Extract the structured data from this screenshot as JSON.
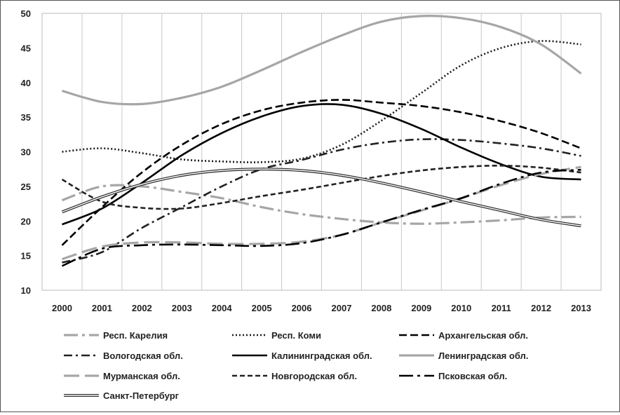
{
  "chart_data": {
    "type": "line",
    "title": "",
    "xlabel": "",
    "ylabel": "",
    "ylim": [
      10,
      50
    ],
    "yticks": [
      10,
      15,
      20,
      25,
      30,
      35,
      40,
      45,
      50
    ],
    "grid": "vertical",
    "legend_position": "bottom",
    "x": [
      "2000",
      "2001",
      "2002",
      "2003",
      "2004",
      "2005",
      "2006",
      "2007",
      "2008",
      "2009",
      "2010",
      "2011",
      "2012",
      "2013"
    ],
    "series": [
      {
        "name": "Респ. Карелия",
        "color": "#a6a6a6",
        "dash": "long-dash-dot",
        "values": [
          23,
          25,
          25,
          24.2,
          23.3,
          22,
          21,
          20.3,
          19.8,
          19.6,
          19.8,
          20.1,
          20.5,
          20.6
        ]
      },
      {
        "name": "Респ. Коми",
        "color": "#1a1a1a",
        "dash": "dotted",
        "values": [
          30,
          30.5,
          29.8,
          28.9,
          28.6,
          28.5,
          29,
          31,
          34.5,
          38.5,
          42.5,
          45,
          46,
          45.5
        ]
      },
      {
        "name": "Архангельская обл.",
        "color": "#000000",
        "dash": "dashed",
        "values": [
          16.5,
          22,
          27,
          31,
          34,
          36,
          37.1,
          37.5,
          37.1,
          36.6,
          35.7,
          34.4,
          32.7,
          30.5
        ]
      },
      {
        "name": "Вологодская обл.",
        "color": "#222222",
        "dash": "dash-dot",
        "values": [
          14,
          15.5,
          19,
          22,
          25,
          27.5,
          28.8,
          30.3,
          31.3,
          31.8,
          31.7,
          31.2,
          30.5,
          29.4
        ]
      },
      {
        "name": "Калининградская обл.",
        "color": "#000000",
        "dash": "solid",
        "values": [
          19.5,
          21.8,
          25.5,
          29.5,
          32.7,
          35.1,
          36.6,
          36.8,
          35.5,
          33.3,
          30.6,
          28.2,
          26.4,
          26
        ]
      },
      {
        "name": "Ленинградская обл.",
        "color": "#a6a6a6",
        "dash": "solid",
        "values": [
          38.8,
          37.2,
          36.9,
          37.8,
          39.4,
          41.8,
          44.4,
          46.8,
          48.8,
          49.6,
          49.3,
          48,
          45.5,
          41.3
        ]
      },
      {
        "name": "Мурманская обл.",
        "color": "#a6a6a6",
        "dash": "long-dash",
        "values": [
          14.5,
          16.3,
          16.9,
          16.9,
          16.7,
          16.7,
          17,
          18,
          19.8,
          21.5,
          23.3,
          25.2,
          26.8,
          27.8
        ]
      },
      {
        "name": "Новгородская обл.",
        "color": "#222222",
        "dash": "short-dash",
        "values": [
          26,
          22.8,
          21.9,
          21.8,
          22.6,
          23.6,
          24.5,
          25.5,
          26.5,
          27.3,
          27.8,
          28,
          27.7,
          27
        ]
      },
      {
        "name": "Псковская обл.",
        "color": "#000000",
        "dash": "long-dash-dot",
        "values": [
          13.5,
          16,
          16.5,
          16.6,
          16.5,
          16.4,
          16.8,
          18,
          19.8,
          21.6,
          23.3,
          25.4,
          27,
          27.4
        ]
      },
      {
        "name": "Санкт-Петербург",
        "color": "#333333",
        "dash": "double",
        "values": [
          21.3,
          23.5,
          25.3,
          26.6,
          27.3,
          27.5,
          27.3,
          26.6,
          25.5,
          24.2,
          22.8,
          21.5,
          20.2,
          19.3
        ]
      }
    ]
  }
}
